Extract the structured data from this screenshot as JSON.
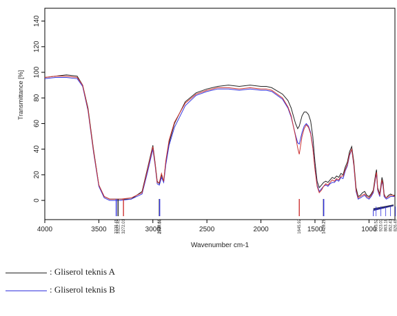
{
  "chart_data": {
    "type": "line",
    "ylabel": "Transmittance [%]",
    "xlabel": "Wavenumber cm-1",
    "xlim": [
      4000,
      760
    ],
    "ylim": [
      -15,
      150
    ],
    "x_ticks": [
      "4000",
      "3500",
      "3000",
      "2500",
      "2000",
      "1500",
      "1000"
    ],
    "y_ticks": [
      "0",
      "20",
      "40",
      "60",
      "80",
      "100",
      "120",
      "140"
    ],
    "series": [
      {
        "key": "A",
        "color": "#222222",
        "x": [
          4000,
          3900,
          3800,
          3700,
          3650,
          3600,
          3550,
          3500,
          3450,
          3400,
          3300,
          3200,
          3100,
          3050,
          3000,
          2980,
          2960,
          2940,
          2920,
          2900,
          2880,
          2850,
          2800,
          2700,
          2600,
          2500,
          2400,
          2300,
          2200,
          2100,
          2000,
          1950,
          1900,
          1800,
          1750,
          1720,
          1700,
          1680,
          1660,
          1645,
          1620,
          1600,
          1580,
          1560,
          1540,
          1520,
          1500,
          1480,
          1460,
          1440,
          1420,
          1400,
          1380,
          1360,
          1340,
          1320,
          1300,
          1280,
          1260,
          1240,
          1220,
          1200,
          1180,
          1160,
          1140,
          1120,
          1100,
          1080,
          1060,
          1040,
          1020,
          1000,
          980,
          960,
          940,
          930,
          920,
          900,
          880,
          870,
          860,
          850,
          840,
          820,
          800,
          780,
          760
        ],
        "y": [
          96,
          97,
          98,
          97,
          90,
          72,
          40,
          12,
          3,
          1,
          1,
          1,
          7,
          25,
          43,
          30,
          15,
          13,
          20,
          15,
          30,
          45,
          60,
          77,
          84,
          87,
          89,
          90,
          89,
          90,
          89,
          89,
          88,
          83,
          78,
          72,
          66,
          60,
          56,
          58,
          66,
          69,
          69,
          67,
          62,
          50,
          30,
          15,
          10,
          12,
          14,
          15,
          14,
          16,
          18,
          17,
          19,
          18,
          21,
          20,
          26,
          30,
          38,
          42,
          30,
          10,
          3,
          4,
          6,
          7,
          4,
          3,
          5,
          8,
          20,
          24,
          10,
          5,
          18,
          14,
          5,
          3,
          2,
          4,
          5,
          4,
          4
        ]
      },
      {
        "key": "B",
        "color": "#3333dd",
        "x": [
          4000,
          3900,
          3800,
          3700,
          3650,
          3600,
          3550,
          3500,
          3450,
          3400,
          3300,
          3200,
          3100,
          3050,
          3000,
          2980,
          2960,
          2940,
          2920,
          2900,
          2880,
          2850,
          2800,
          2700,
          2600,
          2500,
          2400,
          2300,
          2200,
          2100,
          2000,
          1950,
          1900,
          1800,
          1750,
          1720,
          1700,
          1680,
          1660,
          1645,
          1620,
          1600,
          1580,
          1560,
          1540,
          1520,
          1500,
          1480,
          1460,
          1440,
          1420,
          1400,
          1380,
          1360,
          1340,
          1320,
          1300,
          1280,
          1260,
          1240,
          1220,
          1200,
          1180,
          1160,
          1140,
          1120,
          1100,
          1080,
          1060,
          1040,
          1020,
          1000,
          980,
          960,
          940,
          930,
          920,
          900,
          880,
          870,
          860,
          850,
          840,
          820,
          800,
          780,
          760
        ],
        "y": [
          95,
          96,
          96,
          95,
          89,
          70,
          38,
          11,
          2,
          0,
          0,
          1,
          5,
          22,
          40,
          28,
          13,
          12,
          18,
          14,
          28,
          43,
          57,
          74,
          82,
          85,
          87,
          87,
          86,
          87,
          86,
          86,
          85,
          79,
          72,
          65,
          58,
          51,
          45,
          44,
          53,
          58,
          60,
          58,
          53,
          42,
          25,
          12,
          7,
          9,
          11,
          12,
          11,
          13,
          14,
          14,
          16,
          15,
          18,
          17,
          23,
          27,
          35,
          40,
          27,
          7,
          1,
          2,
          3,
          4,
          2,
          1,
          3,
          6,
          17,
          21,
          8,
          3,
          15,
          11,
          3,
          2,
          1,
          2,
          3,
          3,
          3
        ]
      },
      {
        "key": "C",
        "color": "#cc3333",
        "x": [
          4000,
          3900,
          3800,
          3700,
          3650,
          3600,
          3550,
          3500,
          3450,
          3400,
          3300,
          3200,
          3100,
          3050,
          3000,
          2980,
          2960,
          2940,
          2920,
          2900,
          2880,
          2850,
          2800,
          2700,
          2600,
          2500,
          2400,
          2300,
          2200,
          2100,
          2000,
          1950,
          1900,
          1800,
          1750,
          1720,
          1700,
          1680,
          1660,
          1645,
          1620,
          1600,
          1580,
          1560,
          1540,
          1520,
          1500,
          1480,
          1460,
          1440,
          1420,
          1400,
          1380,
          1360,
          1340,
          1320,
          1300,
          1280,
          1260,
          1240,
          1220,
          1200,
          1180,
          1160,
          1140,
          1120,
          1100,
          1080,
          1060,
          1040,
          1020,
          1000,
          980,
          960,
          940,
          930,
          920,
          900,
          880,
          870,
          860,
          850,
          840,
          820,
          800,
          780,
          760
        ],
        "y": [
          96,
          97,
          97,
          96,
          90,
          71,
          39,
          12,
          3,
          1,
          1,
          2,
          6,
          24,
          42,
          29,
          14,
          14,
          21,
          15,
          31,
          47,
          61,
          76,
          83,
          86,
          88,
          88,
          87,
          88,
          87,
          87,
          86,
          80,
          73,
          66,
          58,
          50,
          41,
          36,
          50,
          56,
          59,
          57,
          52,
          41,
          24,
          11,
          6,
          8,
          11,
          13,
          12,
          14,
          16,
          15,
          17,
          16,
          19,
          19,
          24,
          28,
          36,
          40,
          28,
          8,
          2,
          3,
          4,
          5,
          3,
          2,
          4,
          7,
          18,
          22,
          9,
          4,
          16,
          12,
          4,
          3,
          2,
          3,
          4,
          4,
          3
        ]
      }
    ],
    "peak_markers": [
      {
        "x": 3339,
        "color": "#3333dd",
        "label": "3338.45"
      },
      {
        "x": 3322,
        "color": "#222222",
        "label": "3322.45"
      },
      {
        "x": 3272,
        "color": "#cc3333",
        "label": "3272.01"
      },
      {
        "x": 2940,
        "color": "#222222",
        "label": "2939.63"
      },
      {
        "x": 2937,
        "color": "#3333dd",
        "label": "2937.58"
      },
      {
        "x": 1645,
        "color": "#cc3333",
        "label": "1645.92"
      },
      {
        "x": 1421,
        "color": "#222222",
        "label": "1420.73"
      },
      {
        "x": 1419,
        "color": "#3333dd",
        "label": "1419.29"
      }
    ],
    "cluster_labels": [
      "993.52",
      "923.03",
      "863.18",
      "852.41",
      "826.49"
    ],
    "cluster_anchor_x": 960
  },
  "legend": [
    {
      "color": "#222222",
      "label": ": Gliserol teknis A"
    },
    {
      "color": "#3333dd",
      "label": ": Gliserol teknis B"
    }
  ]
}
